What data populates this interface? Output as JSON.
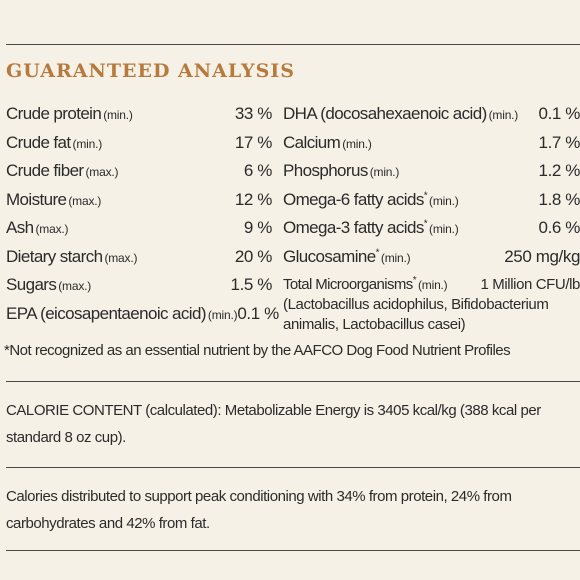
{
  "title": "GUARANTEED ANALYSIS",
  "left_rows": [
    {
      "name": "Crude protein",
      "qualifier": "(min.)",
      "value": "33 %"
    },
    {
      "name": "Crude fat",
      "qualifier": "(min.)",
      "value": "17 %"
    },
    {
      "name": "Crude fiber",
      "qualifier": "(max.)",
      "value": "6 %"
    },
    {
      "name": "Moisture",
      "qualifier": "(max.)",
      "value": "12 %"
    },
    {
      "name": "Ash",
      "qualifier": "(max.)",
      "value": "9 %"
    },
    {
      "name": "Dietary starch",
      "qualifier": "(max.)",
      "value": "20 %"
    },
    {
      "name": "Sugars",
      "qualifier": "(max.)",
      "value": "1.5 %"
    },
    {
      "name": "EPA (eicosapentaenoic acid)",
      "qualifier": "(min.)",
      "value": "0.1 %"
    }
  ],
  "right_rows": [
    {
      "name": "DHA (docosahexaenoic acid)",
      "qualifier": "(min.)",
      "value": "0.1 %"
    },
    {
      "name": "Calcium",
      "qualifier": "(min.)",
      "value": "1.7 %"
    },
    {
      "name": "Phosphorus",
      "qualifier": "(min.)",
      "value": "1.2 %"
    },
    {
      "name": "Omega-6 fatty acids",
      "mark": "*",
      "qualifier": "(min.)",
      "value": "1.8 %"
    },
    {
      "name": "Omega-3 fatty acids",
      "mark": "*",
      "qualifier": "(min.)",
      "value": "0.6 %"
    },
    {
      "name": "Glucosamine",
      "mark": "*",
      "qualifier": "(min.)",
      "value": "250 mg/kg"
    },
    {
      "name": "Total Microorganisms",
      "mark": "*",
      "qualifier": "(min.)",
      "value": "1 Million CFU/lb"
    }
  ],
  "microorganisms_note": "(Lactobacillus acidophilus, Bifidobacterium animalis, Lactobacillus casei)",
  "footnote": "*Not recognized as an essential nutrient by the AAFCO Dog Food Nutrient Profiles",
  "calorie_content": "CALORIE CONTENT (calculated): Metabolizable Energy is 3405 kcal/kg (388 kcal per standard 8 oz cup).",
  "calorie_distribution": "Calories distributed to support peak conditioning with 34% from protein, 24% from carbohydrates and 42% from fat."
}
